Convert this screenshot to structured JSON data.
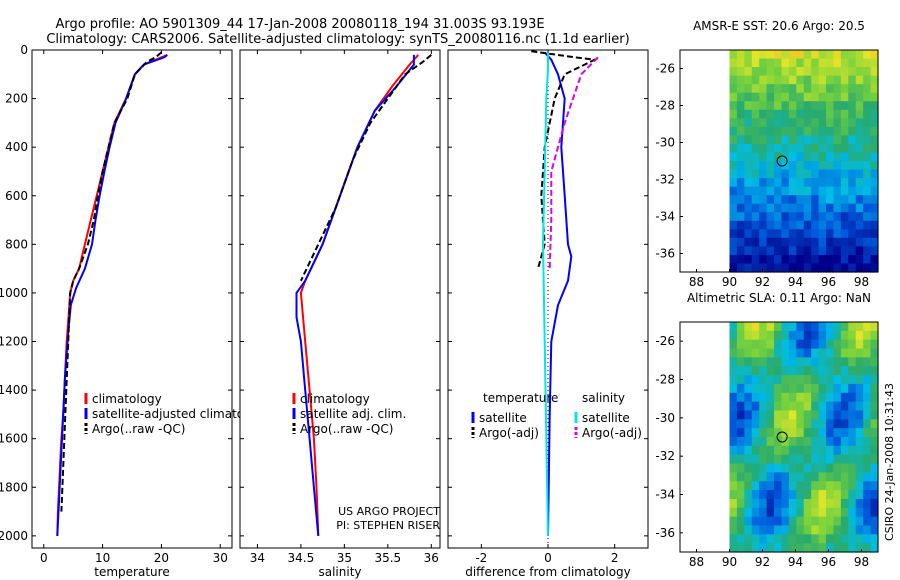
{
  "title": {
    "line1": "Argo profile: AO 5901309_44 17-Jan-2008 20080118_194 31.003S 93.193E",
    "line2": "Climatology: CARS2006. Satellite-adjusted climatology: synTS_20080116.nc (1.1d earlier)"
  },
  "side_note": "CSIRO 24-Jan-2008 10:31:43",
  "project_note": [
    "US ARGO PROJECT",
    "PI: STEPHEN RISER"
  ],
  "colors": {
    "climatology": "#ff0000",
    "satellite": "#0000ff",
    "argo": "#000000",
    "sat_salinity": "#00e5e5",
    "argo_adj_salinity": "#e000e0"
  },
  "chart_data": [
    {
      "type": "line",
      "id": "temperature",
      "xlabel": "temperature",
      "xlim": [
        -2,
        32
      ],
      "ylim": [
        2050,
        0
      ],
      "xticks": [
        0,
        10,
        20,
        30
      ],
      "yticks": [
        0,
        200,
        400,
        600,
        800,
        1000,
        1200,
        1400,
        1600,
        1800,
        2000
      ],
      "legend": [
        "climatology",
        "satellite-adjusted climatology",
        "Argo(..raw -QC)"
      ],
      "series": [
        {
          "name": "climatology",
          "color": "#ff0000",
          "dash": false,
          "points": [
            [
              21.0,
              20
            ],
            [
              20.0,
              30
            ],
            [
              17.0,
              60
            ],
            [
              15.5,
              100
            ],
            [
              14.0,
              200
            ],
            [
              12.0,
              300
            ],
            [
              11.0,
              400
            ],
            [
              10.0,
              500
            ],
            [
              9.0,
              600
            ],
            [
              8.0,
              700
            ],
            [
              7.0,
              800
            ],
            [
              6.0,
              900
            ],
            [
              5.0,
              950
            ],
            [
              4.5,
              1000
            ],
            [
              4.2,
              1100
            ],
            [
              3.9,
              1200
            ],
            [
              3.7,
              1300
            ],
            [
              3.5,
              1400
            ],
            [
              3.3,
              1500
            ],
            [
              3.0,
              1600
            ],
            [
              2.8,
              1700
            ],
            [
              2.6,
              1800
            ],
            [
              2.4,
              1900
            ],
            [
              2.3,
              2000
            ]
          ]
        },
        {
          "name": "satellite-adjusted climatology",
          "color": "#0000ff",
          "dash": false,
          "points": [
            [
              21.0,
              20
            ],
            [
              20.5,
              30
            ],
            [
              17.0,
              60
            ],
            [
              15.5,
              100
            ],
            [
              14.0,
              200
            ],
            [
              12.2,
              300
            ],
            [
              11.2,
              400
            ],
            [
              10.3,
              500
            ],
            [
              9.5,
              600
            ],
            [
              8.8,
              700
            ],
            [
              8.2,
              800
            ],
            [
              7.0,
              900
            ],
            [
              5.5,
              980
            ],
            [
              4.6,
              1050
            ],
            [
              4.2,
              1150
            ],
            [
              3.9,
              1250
            ],
            [
              3.6,
              1350
            ],
            [
              3.4,
              1450
            ],
            [
              3.2,
              1550
            ],
            [
              3.0,
              1650
            ],
            [
              2.8,
              1750
            ],
            [
              2.6,
              1850
            ],
            [
              2.4,
              1950
            ],
            [
              2.3,
              2000
            ]
          ]
        },
        {
          "name": "Argo(..raw -QC)",
          "color": "#000000",
          "dash": true,
          "points": [
            [
              20.0,
              10
            ],
            [
              19.0,
              30
            ],
            [
              17.5,
              50
            ],
            [
              15.5,
              100
            ],
            [
              14.2,
              200
            ],
            [
              12.0,
              300
            ],
            [
              11.0,
              400
            ],
            [
              10.0,
              500
            ],
            [
              9.2,
              600
            ],
            [
              8.5,
              700
            ],
            [
              7.5,
              800
            ],
            [
              6.0,
              900
            ],
            [
              5.0,
              950
            ],
            [
              4.5,
              1000
            ],
            [
              3.0,
              1900
            ]
          ]
        }
      ]
    },
    {
      "type": "line",
      "id": "salinity",
      "xlabel": "salinity",
      "xlim": [
        33.8,
        36.1
      ],
      "ylim": [
        2050,
        0
      ],
      "xticks": [
        34,
        34.5,
        35,
        35.5,
        36
      ],
      "legend": [
        "climatology",
        "satellite adj. clim.",
        "Argo(..raw -QC)"
      ],
      "series": [
        {
          "name": "climatology",
          "color": "#ff0000",
          "dash": false,
          "points": [
            [
              35.85,
              20
            ],
            [
              35.75,
              60
            ],
            [
              35.55,
              150
            ],
            [
              35.35,
              250
            ],
            [
              35.15,
              400
            ],
            [
              34.95,
              600
            ],
            [
              34.75,
              800
            ],
            [
              34.55,
              950
            ],
            [
              34.5,
              1000
            ],
            [
              34.55,
              1200
            ],
            [
              34.6,
              1400
            ],
            [
              34.65,
              1600
            ],
            [
              34.68,
              1800
            ],
            [
              34.7,
              2000
            ]
          ]
        },
        {
          "name": "satellite adj. clim.",
          "color": "#0000ff",
          "dash": false,
          "points": [
            [
              35.8,
              20
            ],
            [
              35.8,
              60
            ],
            [
              35.6,
              150
            ],
            [
              35.35,
              250
            ],
            [
              35.15,
              400
            ],
            [
              34.95,
              600
            ],
            [
              34.75,
              800
            ],
            [
              34.55,
              950
            ],
            [
              34.45,
              1000
            ],
            [
              34.45,
              1100
            ],
            [
              34.5,
              1200
            ],
            [
              34.55,
              1400
            ],
            [
              34.6,
              1600
            ],
            [
              34.65,
              1800
            ],
            [
              34.7,
              2000
            ]
          ]
        },
        {
          "name": "Argo(..raw -QC)",
          "color": "#000000",
          "dash": true,
          "points": [
            [
              36.0,
              20
            ],
            [
              35.9,
              50
            ],
            [
              35.7,
              100
            ],
            [
              35.5,
              200
            ],
            [
              35.3,
              300
            ],
            [
              35.1,
              450
            ],
            [
              34.9,
              650
            ],
            [
              34.7,
              800
            ],
            [
              34.5,
              950
            ]
          ]
        }
      ]
    },
    {
      "type": "line",
      "id": "difference",
      "xlabel": "difference from climatology",
      "xlim": [
        -3,
        3
      ],
      "ylim": [
        2050,
        0
      ],
      "xticks": [
        -2,
        0,
        2
      ],
      "legend_headers": [
        "temperature",
        "salinity"
      ],
      "legend_left": [
        "satellite",
        "Argo(-adj)"
      ],
      "legend_right": [
        "satellite",
        "Argo(-adj)"
      ],
      "series": [
        {
          "name": "satellite",
          "group": "temperature",
          "color": "#0000ff",
          "dash": false,
          "points": [
            [
              -0.1,
              10
            ],
            [
              0.1,
              40
            ],
            [
              0.3,
              100
            ],
            [
              0.5,
              200
            ],
            [
              0.4,
              400
            ],
            [
              0.5,
              600
            ],
            [
              0.6,
              800
            ],
            [
              0.7,
              850
            ],
            [
              0.6,
              950
            ],
            [
              0.3,
              1050
            ],
            [
              0.1,
              1200
            ],
            [
              0.05,
              1500
            ],
            [
              0.0,
              2000
            ]
          ]
        },
        {
          "name": "Argo(-adj)",
          "group": "temperature",
          "color": "#000000",
          "dash": true,
          "points": [
            [
              -0.5,
              5
            ],
            [
              0.8,
              30
            ],
            [
              1.4,
              40
            ],
            [
              0.5,
              100
            ],
            [
              0.2,
              200
            ],
            [
              -0.1,
              400
            ],
            [
              -0.2,
              600
            ],
            [
              -0.1,
              800
            ],
            [
              -0.3,
              900
            ]
          ]
        },
        {
          "name": "satellite",
          "group": "salinity",
          "color": "#00e5e5",
          "dash": false,
          "points": [
            [
              0.0,
              10
            ],
            [
              0.0,
              80
            ],
            [
              -0.05,
              200
            ],
            [
              -0.1,
              500
            ],
            [
              -0.15,
              800
            ],
            [
              -0.1,
              1200
            ],
            [
              -0.05,
              1600
            ],
            [
              0.0,
              2000
            ]
          ]
        },
        {
          "name": "Argo(-adj)",
          "group": "salinity",
          "color": "#e000e0",
          "dash": true,
          "points": [
            [
              1.5,
              30
            ],
            [
              1.0,
              100
            ],
            [
              0.5,
              300
            ],
            [
              0.1,
              500
            ],
            [
              0.1,
              700
            ],
            [
              0.05,
              900
            ]
          ]
        }
      ]
    }
  ],
  "maps": [
    {
      "id": "sst",
      "title": "AMSR-E SST: 20.6 Argo: 20.5",
      "xticks": [
        "88",
        "90",
        "92",
        "94",
        "96",
        "98"
      ],
      "yticks": [
        "-26",
        "-28",
        "-30",
        "-32",
        "-34",
        "-36"
      ]
    },
    {
      "id": "sla",
      "title": "Altimetric SLA: 0.11 Argo: NaN",
      "xticks": [
        "88",
        "90",
        "92",
        "94",
        "96",
        "98"
      ],
      "yticks": [
        "-26",
        "-28",
        "-30",
        "-32",
        "-34",
        "-36"
      ]
    }
  ]
}
